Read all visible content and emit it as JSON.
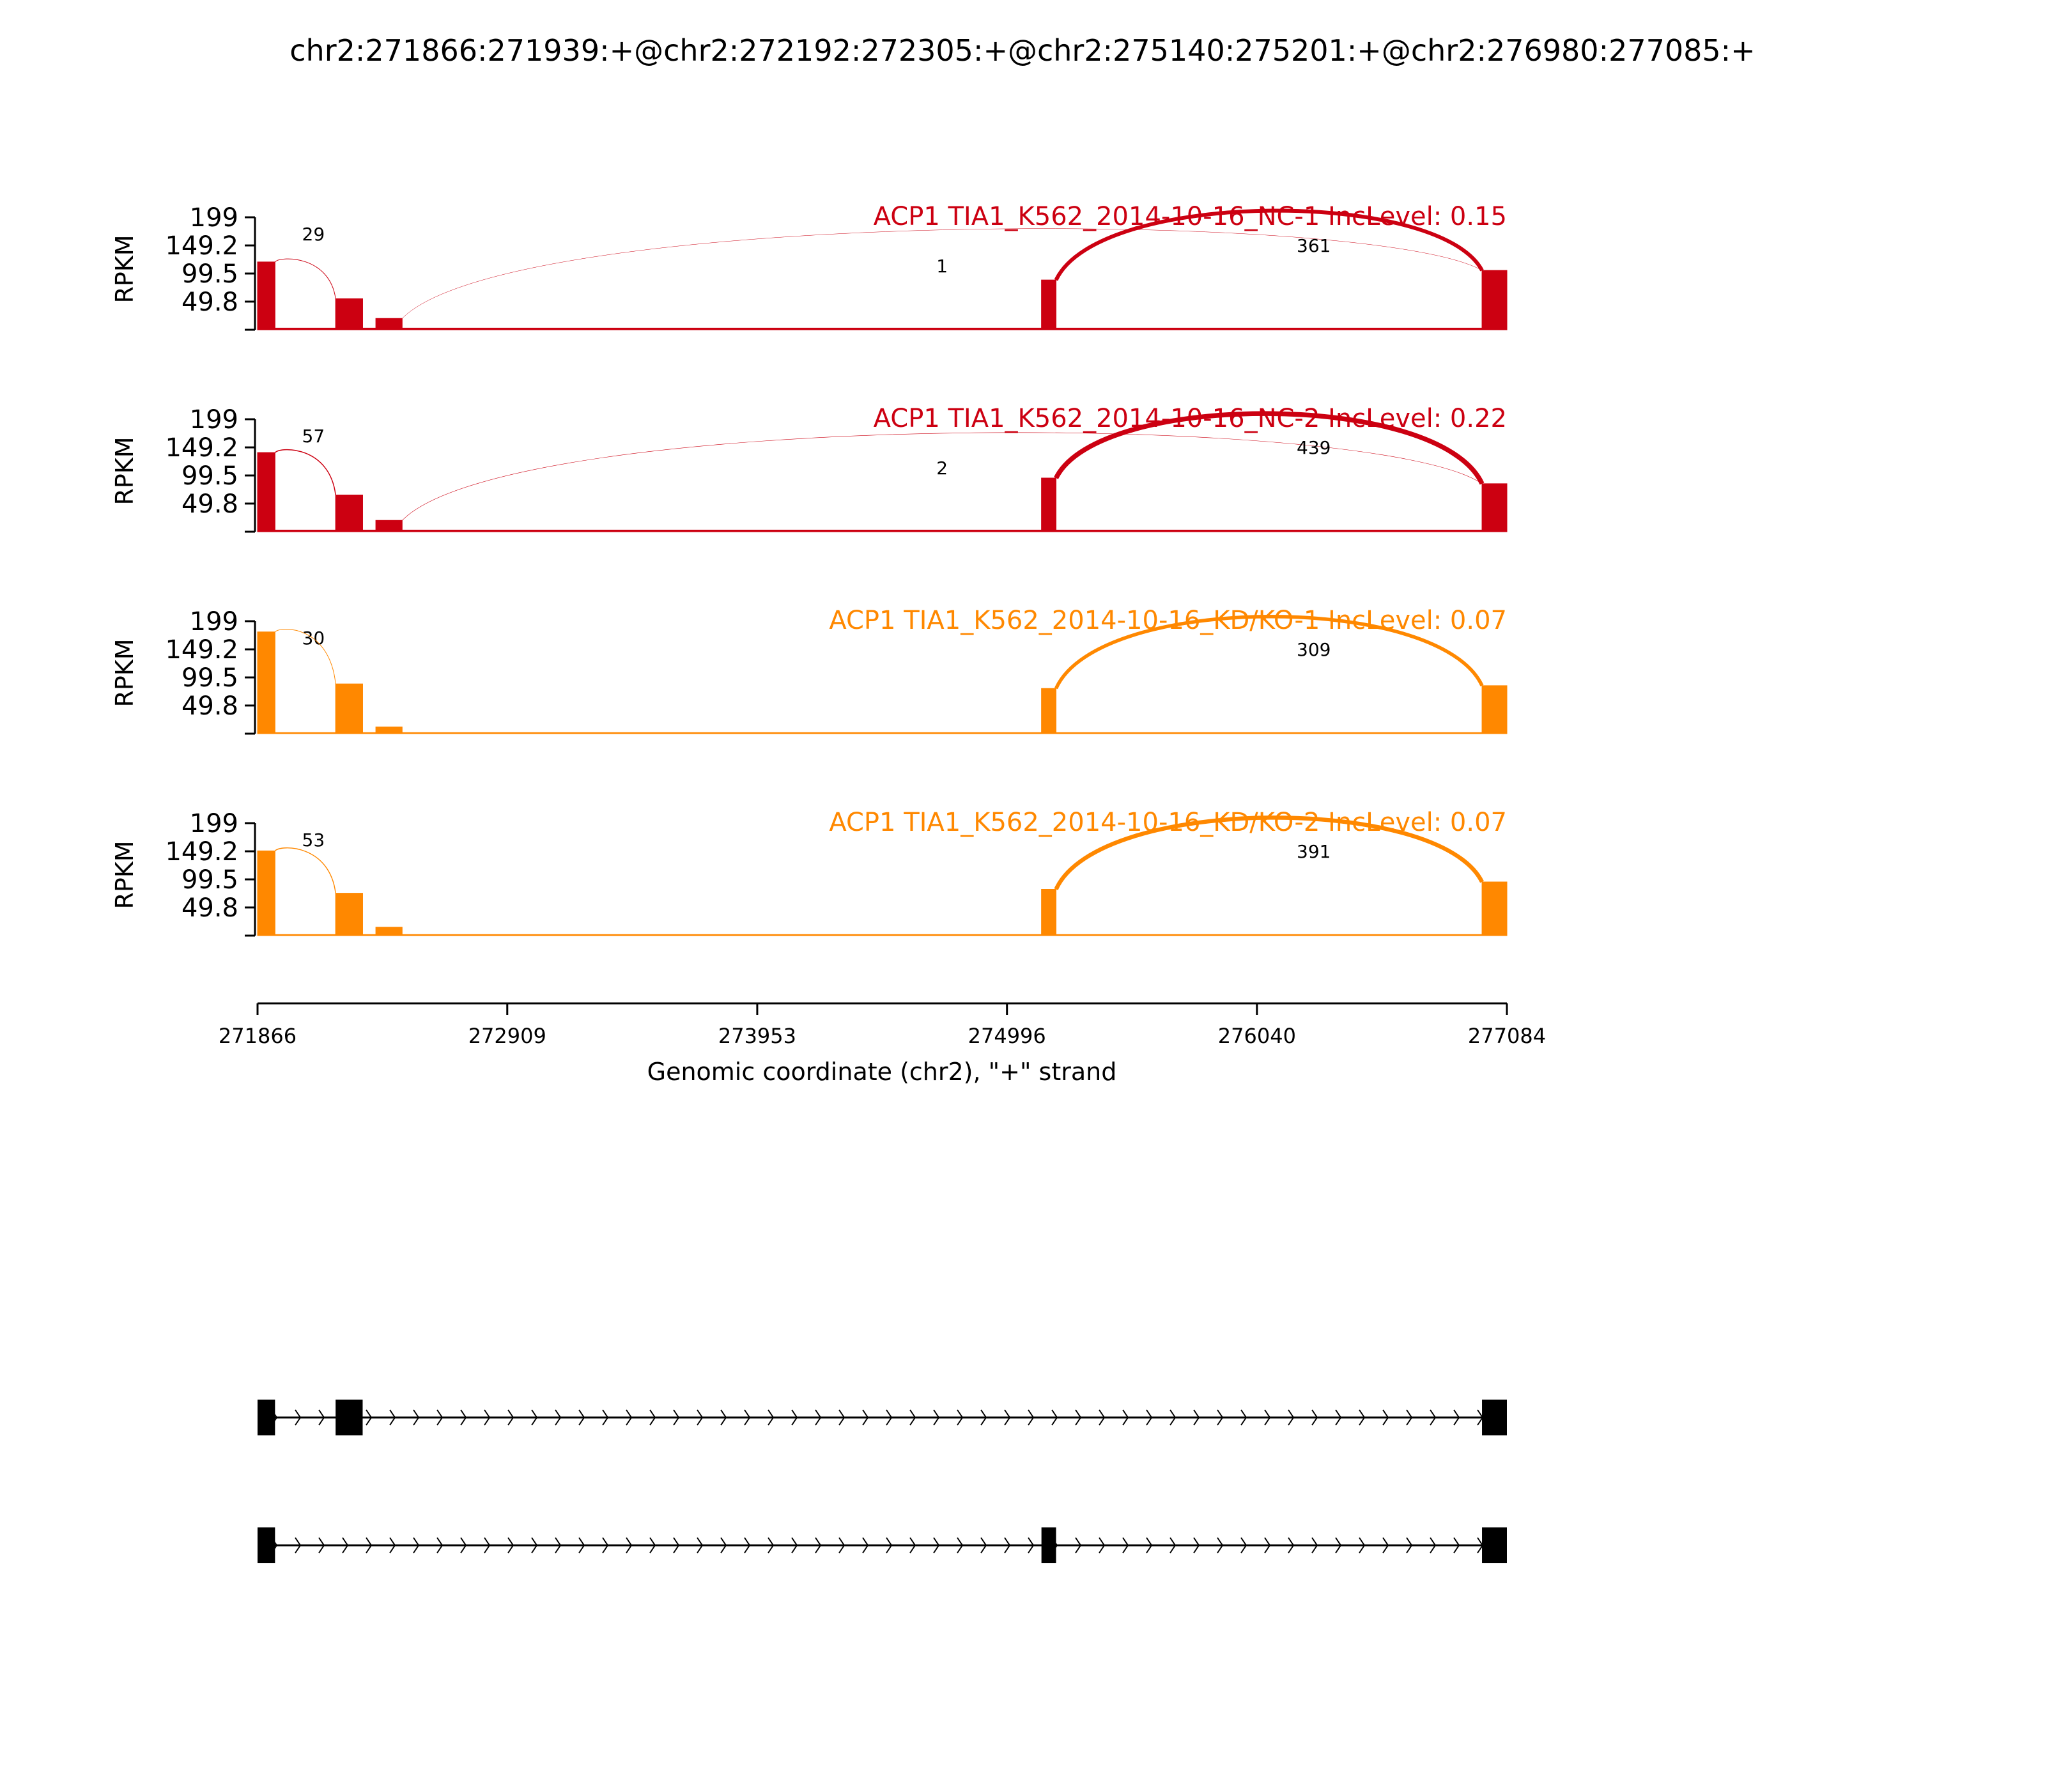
{
  "title": "chr2:271866:271939:+@chr2:272192:272305:+@chr2:275140:275201:+@chr2:276980:277085:+",
  "chart_data": {
    "type": "sashimi",
    "xlabel": "Genomic coordinate (chr2), \"+\" strand",
    "xlim": [
      271866,
      277084
    ],
    "xticks": [
      271866,
      272909,
      273953,
      274996,
      276040,
      277084
    ],
    "xtick_labels": [
      "271866",
      "272909",
      "273953",
      "274996",
      "276040",
      "277084"
    ],
    "ylabel": "RPKM",
    "ylim": [
      0,
      199
    ],
    "yticks": [
      49.8,
      99.5,
      149.2,
      199
    ],
    "ytick_labels": [
      "49.8",
      "99.5",
      "149.2",
      "199"
    ],
    "exons": [
      {
        "start": 271866,
        "end": 271939
      },
      {
        "start": 272192,
        "end": 272305
      },
      {
        "start": 272360,
        "end": 272470
      },
      {
        "start": 275140,
        "end": 275201
      },
      {
        "start": 276980,
        "end": 277085
      }
    ],
    "tracks": [
      {
        "label": "ACP1 TIA1_K562_2014-10-16_NC-1 IncLevel: 0.15",
        "color": "#cc0011",
        "exon_rpkm": [
          120,
          55,
          20,
          88,
          105
        ],
        "intron_rpkm": 3,
        "junctions": [
          {
            "count": 29,
            "count_label": "29",
            "start": 271939,
            "end": 272192,
            "width": 1
          },
          {
            "count": 1,
            "count_label": "1",
            "start": 272470,
            "end": 276980,
            "width": 0.5
          },
          {
            "count": 361,
            "count_label": "361",
            "start": 275201,
            "end": 276980,
            "width": 6
          }
        ]
      },
      {
        "label": "ACP1 TIA1_K562_2014-10-16_NC-2 IncLevel: 0.22",
        "color": "#cc0011",
        "exon_rpkm": [
          140,
          65,
          20,
          95,
          85
        ],
        "intron_rpkm": 3,
        "junctions": [
          {
            "count": 57,
            "count_label": "57",
            "start": 271939,
            "end": 272192,
            "width": 1.5
          },
          {
            "count": 2,
            "count_label": "2",
            "start": 272470,
            "end": 276980,
            "width": 0.6
          },
          {
            "count": 439,
            "count_label": "439",
            "start": 275201,
            "end": 276980,
            "width": 7.5
          }
        ]
      },
      {
        "label": "ACP1 TIA1_K562_2014-10-16_KD/KO-1 IncLevel: 0.07",
        "color": "#ff8800",
        "exon_rpkm": [
          180,
          88,
          12,
          80,
          85
        ],
        "intron_rpkm": 2,
        "junctions": [
          {
            "count": 30,
            "count_label": "30",
            "start": 271939,
            "end": 272192,
            "width": 1
          },
          {
            "count": 309,
            "count_label": "309",
            "start": 275201,
            "end": 276980,
            "width": 5.5
          }
        ]
      },
      {
        "label": "ACP1 TIA1_K562_2014-10-16_KD/KO-2 IncLevel: 0.07",
        "color": "#ff8800",
        "exon_rpkm": [
          150,
          75,
          15,
          82,
          95
        ],
        "intron_rpkm": 2,
        "junctions": [
          {
            "count": 53,
            "count_label": "53",
            "start": 271939,
            "end": 272192,
            "width": 1.4
          },
          {
            "count": 391,
            "count_label": "391",
            "start": 275201,
            "end": 276980,
            "width": 6.5
          }
        ]
      }
    ],
    "isoforms": [
      {
        "exons": [
          [
            271866,
            271939
          ],
          [
            272192,
            272305
          ],
          [
            276980,
            277085
          ]
        ]
      },
      {
        "exons": [
          [
            271866,
            271939
          ],
          [
            275140,
            275201
          ],
          [
            276980,
            277085
          ]
        ]
      }
    ]
  }
}
